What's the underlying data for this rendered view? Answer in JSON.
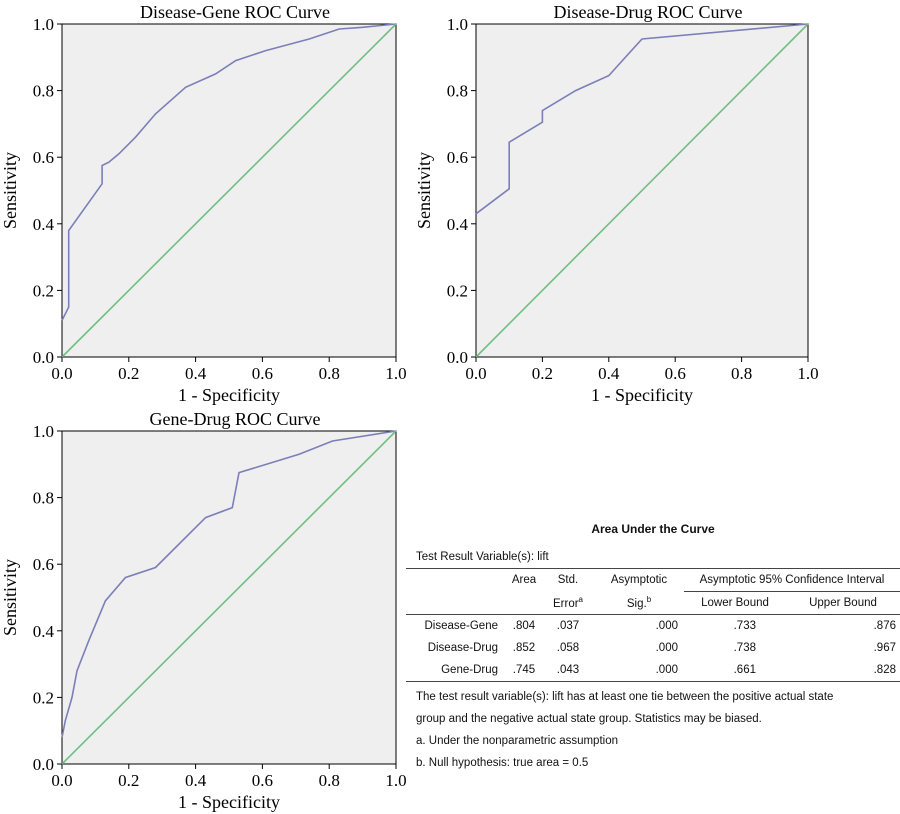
{
  "chart_data": [
    {
      "type": "line",
      "title": "Disease-Gene ROC Curve",
      "xlabel": "1 - Specificity",
      "ylabel": "Sensitivity",
      "xlim": [
        0,
        1
      ],
      "ylim": [
        0,
        1
      ],
      "ticks": [
        "0.0",
        "0.2",
        "0.4",
        "0.6",
        "0.8",
        "1.0"
      ],
      "series": [
        {
          "color": "#7b7fb8",
          "points": [
            [
              0,
              0.11
            ],
            [
              0.02,
              0.15
            ],
            [
              0.02,
              0.38
            ],
            [
              0.12,
              0.52
            ],
            [
              0.12,
              0.575
            ],
            [
              0.14,
              0.585
            ],
            [
              0.17,
              0.61
            ],
            [
              0.22,
              0.66
            ],
            [
              0.28,
              0.73
            ],
            [
              0.37,
              0.81
            ],
            [
              0.46,
              0.85
            ],
            [
              0.52,
              0.89
            ],
            [
              0.61,
              0.92
            ],
            [
              0.74,
              0.955
            ],
            [
              0.83,
              0.985
            ],
            [
              0.9,
              0.99
            ],
            [
              1,
              1
            ]
          ]
        },
        {
          "color": "#6fbf81",
          "points": [
            [
              0,
              0
            ],
            [
              1,
              1
            ]
          ]
        }
      ]
    },
    {
      "type": "line",
      "title": "Disease-Drug ROC Curve",
      "xlabel": "1 - Specificity",
      "ylabel": "Sensitivity",
      "xlim": [
        0,
        1
      ],
      "ylim": [
        0,
        1
      ],
      "ticks": [
        "0.0",
        "0.2",
        "0.4",
        "0.6",
        "0.8",
        "1.0"
      ],
      "series": [
        {
          "color": "#7b7fb8",
          "points": [
            [
              0,
              0.43
            ],
            [
              0.1,
              0.505
            ],
            [
              0.1,
              0.645
            ],
            [
              0.2,
              0.705
            ],
            [
              0.2,
              0.74
            ],
            [
              0.3,
              0.8
            ],
            [
              0.4,
              0.845
            ],
            [
              0.5,
              0.955
            ],
            [
              1,
              1
            ]
          ]
        },
        {
          "color": "#6fbf81",
          "points": [
            [
              0,
              0
            ],
            [
              1,
              1
            ]
          ]
        }
      ]
    },
    {
      "type": "line",
      "title": "Gene-Drug ROC Curve",
      "xlabel": "1 - Specificity",
      "ylabel": "Sensitivity",
      "xlim": [
        0,
        1
      ],
      "ylim": [
        0,
        1
      ],
      "ticks": [
        "0.0",
        "0.2",
        "0.4",
        "0.6",
        "0.8",
        "1.0"
      ],
      "series": [
        {
          "color": "#7b7fb8",
          "points": [
            [
              0,
              0.08
            ],
            [
              0.01,
              0.13
            ],
            [
              0.03,
              0.2
            ],
            [
              0.045,
              0.28
            ],
            [
              0.08,
              0.37
            ],
            [
              0.13,
              0.49
            ],
            [
              0.19,
              0.56
            ],
            [
              0.28,
              0.59
            ],
            [
              0.43,
              0.74
            ],
            [
              0.51,
              0.77
            ],
            [
              0.53,
              0.875
            ],
            [
              0.71,
              0.93
            ],
            [
              0.81,
              0.97
            ],
            [
              1,
              1
            ]
          ]
        },
        {
          "color": "#6fbf81",
          "points": [
            [
              0,
              0
            ],
            [
              1,
              1
            ]
          ]
        }
      ]
    }
  ],
  "auc_table": {
    "title": "Area Under the Curve",
    "test_var": "Test Result Variable(s): lift",
    "headers": {
      "area": "Area",
      "std1": "Std.",
      "std2": "Error",
      "std_sup": "a",
      "asym1": "Asymptotic",
      "asym2": "Sig.",
      "asym_sup": "b",
      "ci": "Asymptotic 95% Confidence Interval",
      "lower": "Lower Bound",
      "upper": "Upper Bound"
    },
    "rows": [
      {
        "name": "Disease-Gene",
        "area": ".804",
        "se": ".037",
        "sig": ".000",
        "lower": ".733",
        "upper": ".876"
      },
      {
        "name": "Disease-Drug",
        "area": ".852",
        "se": ".058",
        "sig": ".000",
        "lower": ".738",
        "upper": ".967"
      },
      {
        "name": "Gene-Drug",
        "area": ".745",
        "se": ".043",
        "sig": ".000",
        "lower": ".661",
        "upper": ".828"
      }
    ],
    "note1": "The test result variable(s): lift has at least one tie between the positive actual state",
    "note2": "group and the negative actual state group. Statistics may be biased.",
    "note_a": "a. Under the nonparametric assumption",
    "note_b": "b. Null hypothesis: true area = 0.5"
  }
}
